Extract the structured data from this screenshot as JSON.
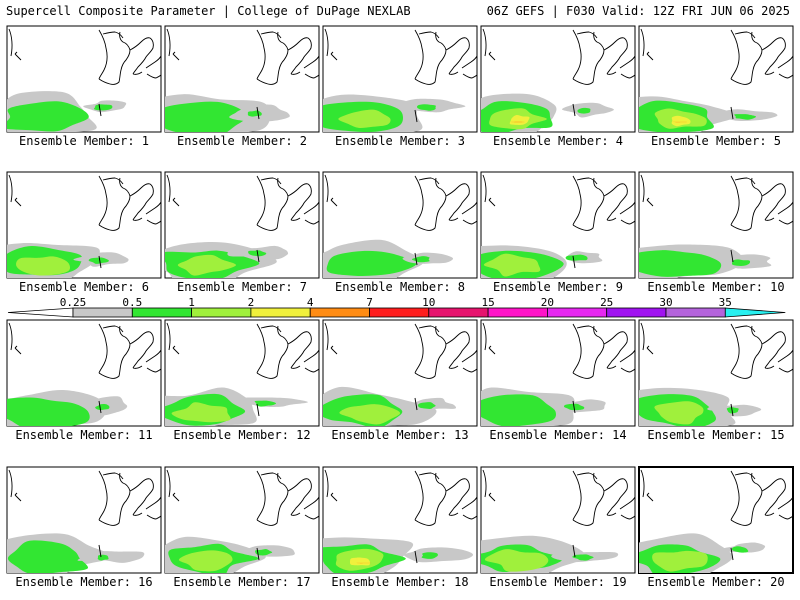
{
  "header": {
    "title": "Supercell Composite Parameter | College of DuPage NEXLAB",
    "run_info": "06Z GEFS | F030 Valid: 12Z FRI JUN 06 2025"
  },
  "member_label_prefix": "Ensemble Member: ",
  "members": [
    {
      "id": 1,
      "max_level": 2,
      "selected": false
    },
    {
      "id": 2,
      "max_level": 2,
      "selected": false
    },
    {
      "id": 3,
      "max_level": 3,
      "selected": false
    },
    {
      "id": 4,
      "max_level": 5,
      "selected": false
    },
    {
      "id": 5,
      "max_level": 5,
      "selected": false
    },
    {
      "id": 6,
      "max_level": 3,
      "selected": false
    },
    {
      "id": 7,
      "max_level": 3,
      "selected": false
    },
    {
      "id": 8,
      "max_level": 2,
      "selected": false
    },
    {
      "id": 9,
      "max_level": 3,
      "selected": false
    },
    {
      "id": 10,
      "max_level": 2,
      "selected": false
    },
    {
      "id": 11,
      "max_level": 2,
      "selected": false
    },
    {
      "id": 12,
      "max_level": 3,
      "selected": false
    },
    {
      "id": 13,
      "max_level": 3,
      "selected": false
    },
    {
      "id": 14,
      "max_level": 2,
      "selected": false
    },
    {
      "id": 15,
      "max_level": 3,
      "selected": false
    },
    {
      "id": 16,
      "max_level": 2,
      "selected": false
    },
    {
      "id": 17,
      "max_level": 3,
      "selected": false
    },
    {
      "id": 18,
      "max_level": 5,
      "selected": false
    },
    {
      "id": 19,
      "max_level": 3,
      "selected": false
    },
    {
      "id": 20,
      "max_level": 3,
      "selected": true
    }
  ],
  "colorbar": {
    "ticks": [
      "0.25",
      "0.5",
      "1",
      "2",
      "4",
      "7",
      "10",
      "15",
      "20",
      "25",
      "30",
      "35"
    ],
    "colors": [
      "#c8c8c8",
      "#32e632",
      "#a0f03c",
      "#f0f03c",
      "#ff8c14",
      "#ff1e1e",
      "#e6146e",
      "#ff14c8",
      "#e628f0",
      "#a014f0",
      "#b464dc",
      "#28f0f0"
    ],
    "below_color": "#ffffff"
  },
  "region": "Great Lakes / Ohio Valley"
}
